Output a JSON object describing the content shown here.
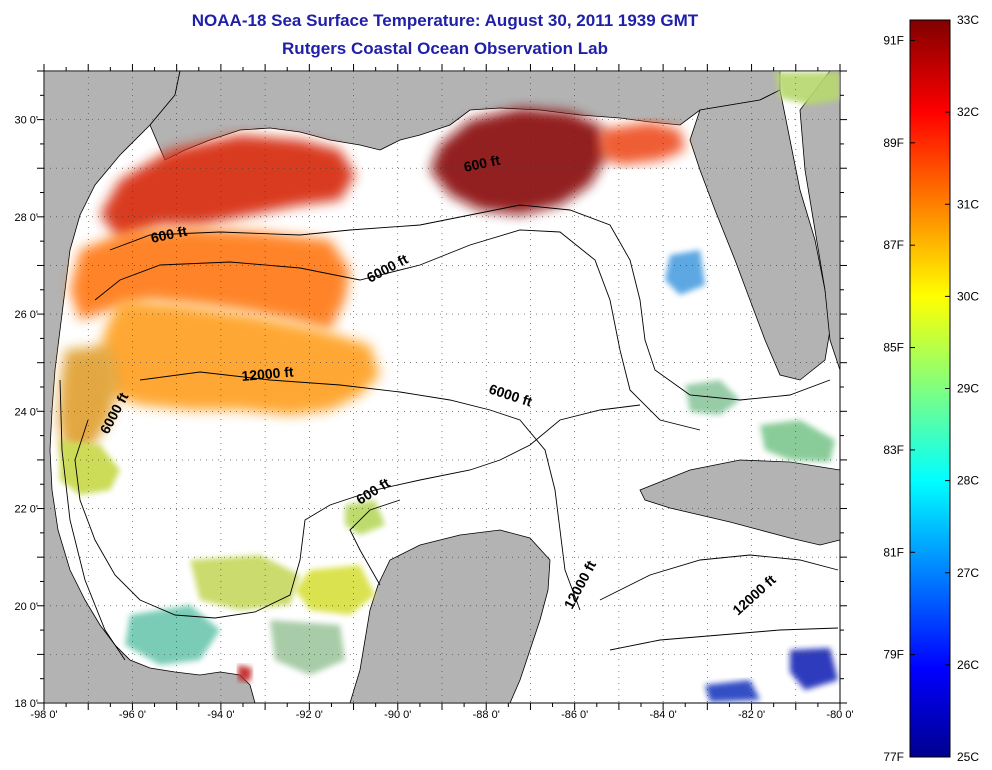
{
  "header": {
    "title": "NOAA-18 Sea Surface Temperature:  August 30, 2011 1939 GMT",
    "subtitle": "Rutgers Coastal Ocean Observation Lab"
  },
  "map": {
    "lon_range": [
      -98,
      -80
    ],
    "lat_range": [
      18,
      31
    ],
    "x_ticks": [
      "-98 0'",
      "-96 0'",
      "-94 0'",
      "-92 0'",
      "-90 0'",
      "-88 0'",
      "-86 0'",
      "-84 0'",
      "-82 0'",
      "-80 0'"
    ],
    "y_ticks": [
      "18 0'",
      "20 0'",
      "22 0'",
      "24 0'",
      "26 0'",
      "28 0'",
      "30 0'"
    ],
    "grid": "dotted",
    "colors": {
      "land": "#b3b3b3",
      "no_data": "#ffffff",
      "contour": "#000000"
    },
    "contour_labels": [
      "600 ft",
      "600 ft",
      "6000 ft",
      "12000 ft",
      "6000 ft",
      "6000 ft",
      "600 ft",
      "12000 ft",
      "12000 ft"
    ]
  },
  "colorbar": {
    "celsius_labels": [
      "33C",
      "32C",
      "31C",
      "30C",
      "29C",
      "28C",
      "27C",
      "26C",
      "25C"
    ],
    "fahrenheit_labels": [
      "91F",
      "89F",
      "87F",
      "85F",
      "83F",
      "81F",
      "79F",
      "77F"
    ],
    "range_c": [
      25,
      33
    ],
    "range_f": [
      77,
      91.4
    ]
  }
}
